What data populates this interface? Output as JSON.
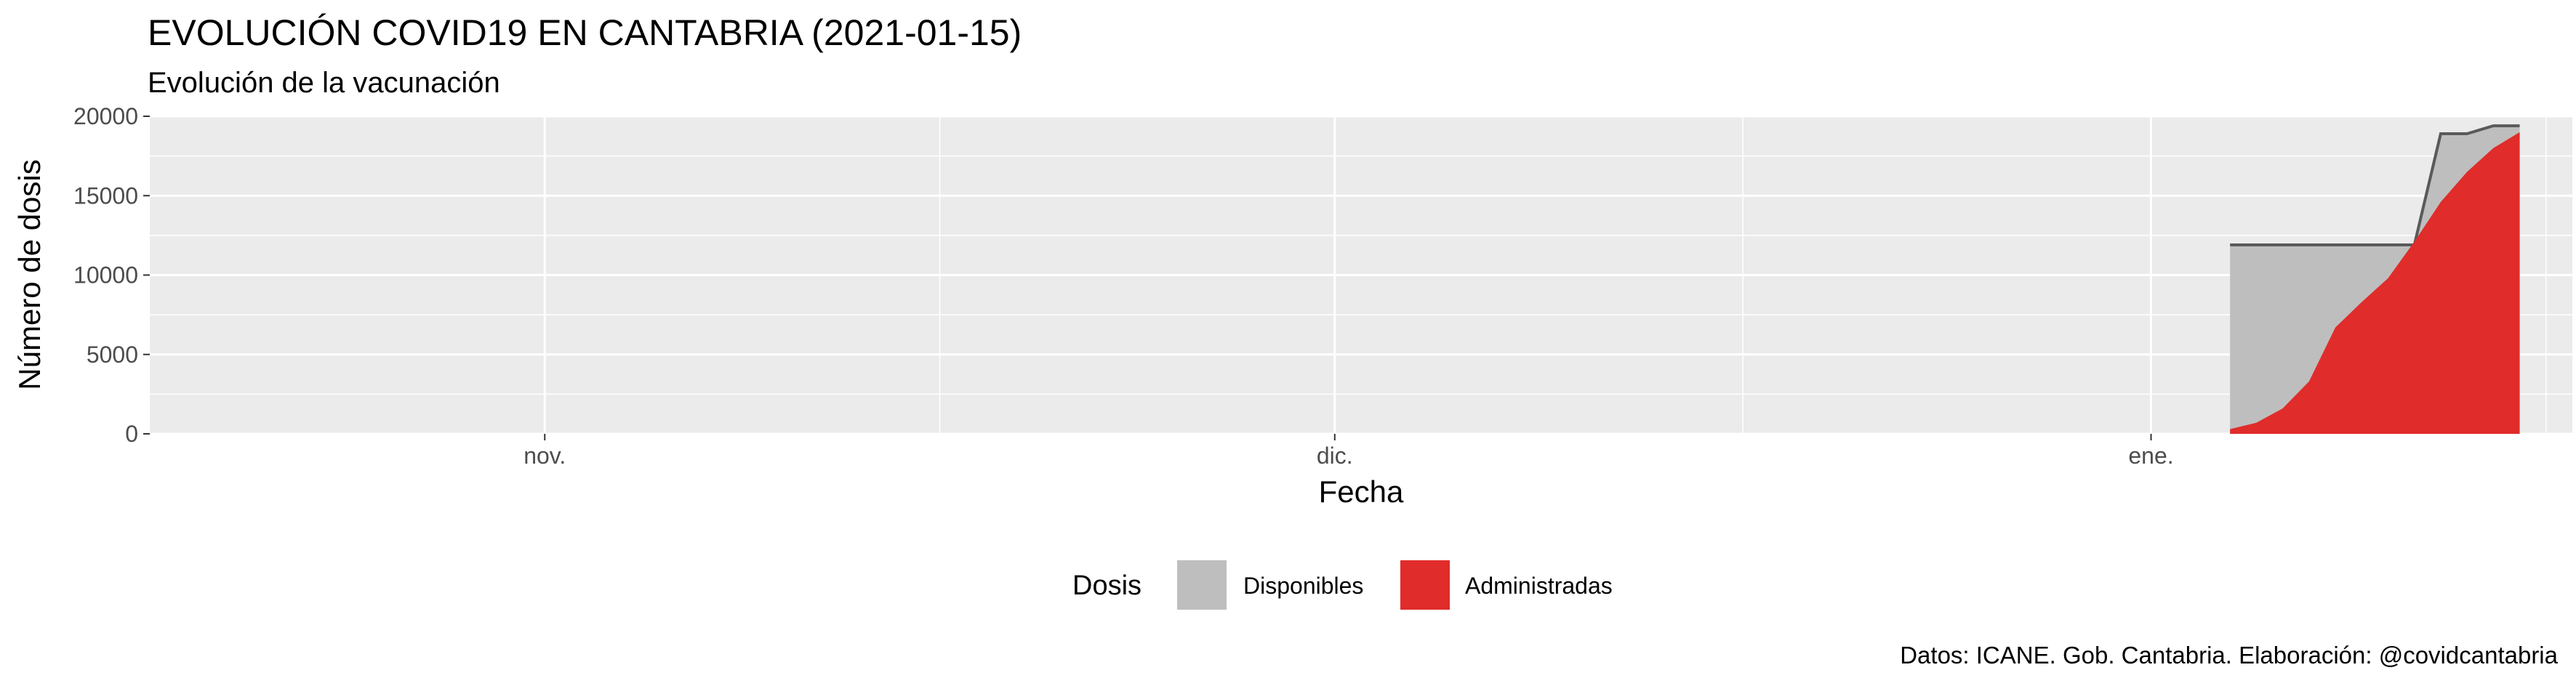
{
  "header": {
    "title": "EVOLUCIÓN COVID19 EN CANTABRIA (2021-01-15)",
    "subtitle": "Evolución de la vacunación"
  },
  "caption": "Datos: ICANE. Gob. Cantabria. Elaboración: @covidcantabria",
  "chart_data": {
    "type": "area",
    "xlabel": "Fecha",
    "ylabel": "Número de dosis",
    "x_ticks": [
      {
        "date": "2020-11-01",
        "label": "nov."
      },
      {
        "date": "2020-12-01",
        "label": "dic."
      },
      {
        "date": "2021-01-01",
        "label": "ene."
      }
    ],
    "xlim": [
      "2020-10-17",
      "2021-01-17"
    ],
    "y_ticks": [
      0,
      5000,
      10000,
      15000,
      20000
    ],
    "ylim": [
      0,
      20000
    ],
    "grid": true,
    "legend": {
      "title": "Dosis",
      "position": "bottom",
      "entries": [
        {
          "name": "Disponibles",
          "color": "#bebebe"
        },
        {
          "name": "Administradas",
          "color": "#e02c2a"
        }
      ]
    },
    "x": [
      "2021-01-04",
      "2021-01-05",
      "2021-01-06",
      "2021-01-07",
      "2021-01-08",
      "2021-01-09",
      "2021-01-10",
      "2021-01-11",
      "2021-01-12",
      "2021-01-13",
      "2021-01-14",
      "2021-01-15"
    ],
    "series": [
      {
        "name": "Disponibles",
        "color": "#bebebe",
        "values": [
          11900,
          11900,
          11900,
          11900,
          11900,
          11900,
          11900,
          11900,
          18900,
          18900,
          19400,
          19400
        ]
      },
      {
        "name": "Administradas",
        "color": "#e02c2a",
        "values": [
          300,
          700,
          1600,
          3300,
          6700,
          8300,
          9800,
          12100,
          14600,
          16500,
          18000,
          19000
        ]
      }
    ]
  }
}
